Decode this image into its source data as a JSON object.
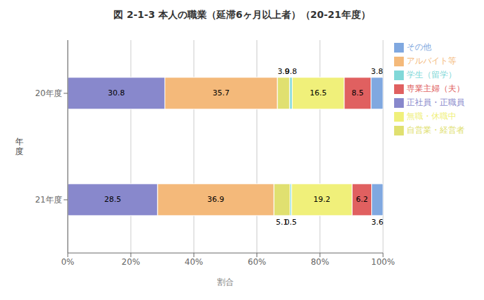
{
  "chart_data": {
    "type": "bar",
    "orientation": "horizontal",
    "stacked": true,
    "title": "図 2-1-3  本人の職業（延滞6ヶ月以上者）（20-21年度）",
    "xlabel": "割合",
    "ylabel": "年\n度",
    "categories": [
      "20年度",
      "21年度"
    ],
    "series": [
      {
        "name": "正社員・正職員",
        "color": "#8888cc",
        "values": [
          30.8,
          28.5
        ]
      },
      {
        "name": "アルバイト等",
        "color": "#f4b97a",
        "values": [
          35.7,
          36.9
        ]
      },
      {
        "name": "自営業・経営者",
        "color": "#e0e070",
        "values": [
          3.9,
          5.1
        ]
      },
      {
        "name": "学生（留学）",
        "color": "#80d8d8",
        "values": [
          0.8,
          0.5
        ]
      },
      {
        "name": "無職・休職中",
        "color": "#f0f07a",
        "values": [
          16.5,
          19.2
        ]
      },
      {
        "name": "専業主婦（夫）",
        "color": "#e06060",
        "values": [
          8.5,
          6.2
        ]
      },
      {
        "name": "その他",
        "color": "#80a8e0",
        "values": [
          3.8,
          3.6
        ]
      }
    ],
    "xlim": [
      0,
      100
    ],
    "xticks": [
      {
        "value": 0,
        "label": "0%"
      },
      {
        "value": 20,
        "label": "20%"
      },
      {
        "value": 40,
        "label": "40%"
      },
      {
        "value": 60,
        "label": "60%"
      },
      {
        "value": 80,
        "label": "80%"
      },
      {
        "value": 100,
        "label": "100%"
      }
    ],
    "grid": true,
    "legend": "right",
    "data_labels": true
  }
}
